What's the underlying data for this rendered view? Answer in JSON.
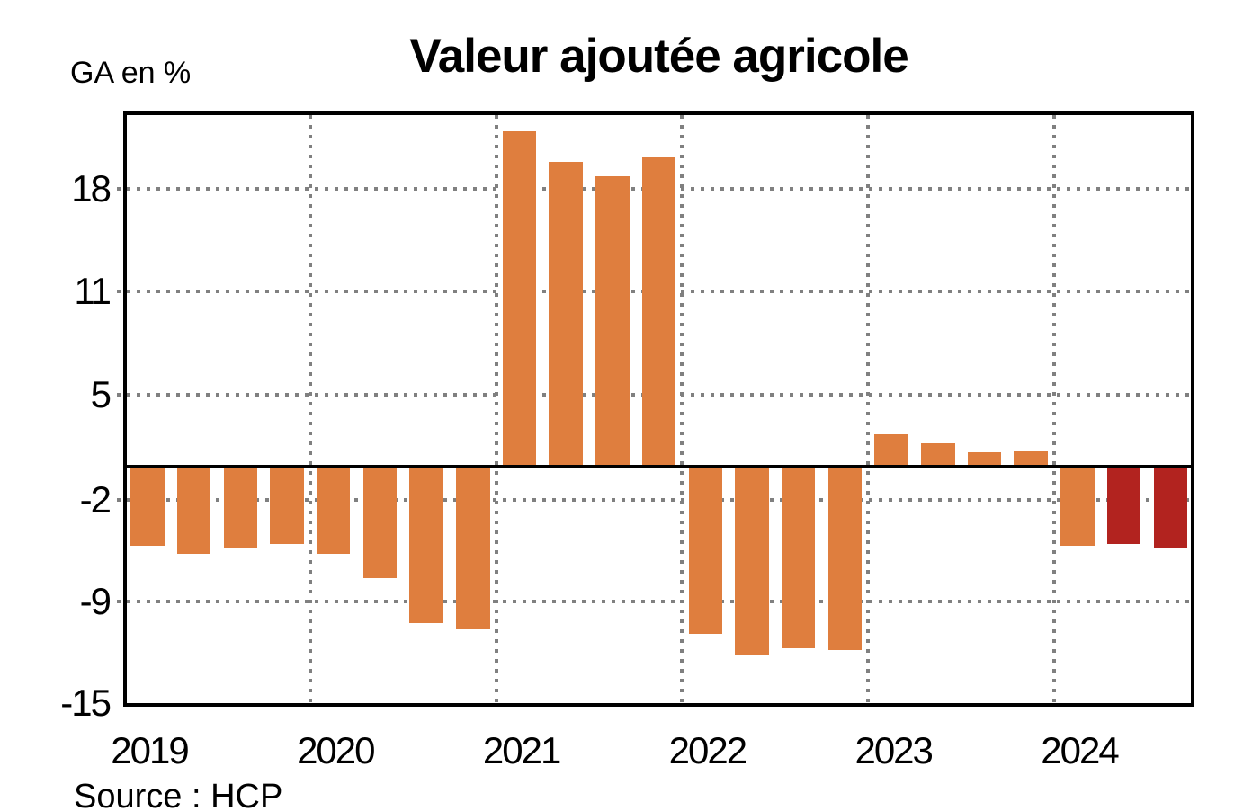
{
  "title": "Valeur ajoutée agricole",
  "y_axis_unit": "GA en %",
  "source": "Source : HCP",
  "chart_data": {
    "type": "bar",
    "title": "Valeur ajoutée agricole",
    "ylabel": "GA en %",
    "xlabel": "",
    "unit": "percent (growth rate, GA en %)",
    "frequency": "quarterly",
    "source": "Source : HCP",
    "legend_position": "none",
    "grid": "dotted",
    "ylim": [
      -15.4,
      22.7
    ],
    "y_ticks": [
      18,
      11,
      5,
      -2,
      -9,
      -15
    ],
    "categories": [
      "2019",
      "2020",
      "2021",
      "2022",
      "2023",
      "2024"
    ],
    "groups": [
      {
        "year": "2019",
        "values": [
          -5.1,
          -5.6,
          -5.2,
          -5.0
        ]
      },
      {
        "year": "2020",
        "values": [
          -5.6,
          -7.2,
          -10.1,
          -10.5
        ]
      },
      {
        "year": "2021",
        "values": [
          21.6,
          19.6,
          18.7,
          19.9
        ]
      },
      {
        "year": "2022",
        "values": [
          -10.8,
          -12.1,
          -11.7,
          -11.8
        ]
      },
      {
        "year": "2023",
        "values": [
          2.1,
          1.5,
          0.9,
          1.0
        ]
      },
      {
        "year": "2024",
        "values": [
          -5.1,
          -5.0,
          -5.2
        ],
        "highlight_from_index": 1
      }
    ],
    "colors": {
      "bar": "#DF7E3E",
      "bar_highlight": "#B2231F",
      "grid": "#808080",
      "axis": "#000000",
      "background": "#FFFFFF"
    }
  }
}
